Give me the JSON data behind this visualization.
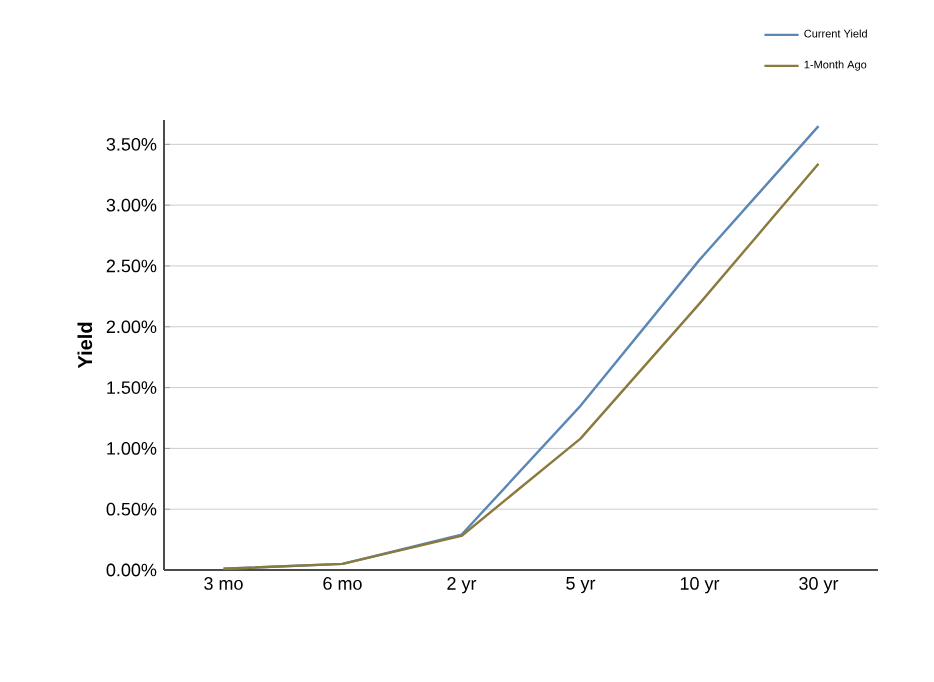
{
  "chart_data": {
    "type": "line",
    "ylabel": "Yield",
    "categories": [
      "3 mo",
      "6 mo",
      "2 yr",
      "5 yr",
      "10 yr",
      "30 yr"
    ],
    "series": [
      {
        "name": "Current Yield",
        "color": "#5b87b5",
        "values": [
          0.01,
          0.05,
          0.29,
          1.35,
          2.55,
          3.65
        ]
      },
      {
        "name": "1-Month Ago",
        "color": "#8b7a3e",
        "values": [
          0.01,
          0.05,
          0.28,
          1.08,
          2.19,
          3.34
        ]
      }
    ],
    "ylim": [
      0,
      3.7
    ],
    "yticks": [
      {
        "value": 0,
        "label": "0.00%"
      },
      {
        "value": 0.5,
        "label": "0.50%"
      },
      {
        "value": 1,
        "label": "1.00%"
      },
      {
        "value": 1.5,
        "label": "1.50%"
      },
      {
        "value": 2,
        "label": "2.00%"
      },
      {
        "value": 2.5,
        "label": "2.50%"
      },
      {
        "value": 3,
        "label": "3.00%"
      },
      {
        "value": 3.5,
        "label": "3.50%"
      }
    ],
    "grid": "y",
    "legend": "top right",
    "marker": "none",
    "line_style": "solid"
  }
}
